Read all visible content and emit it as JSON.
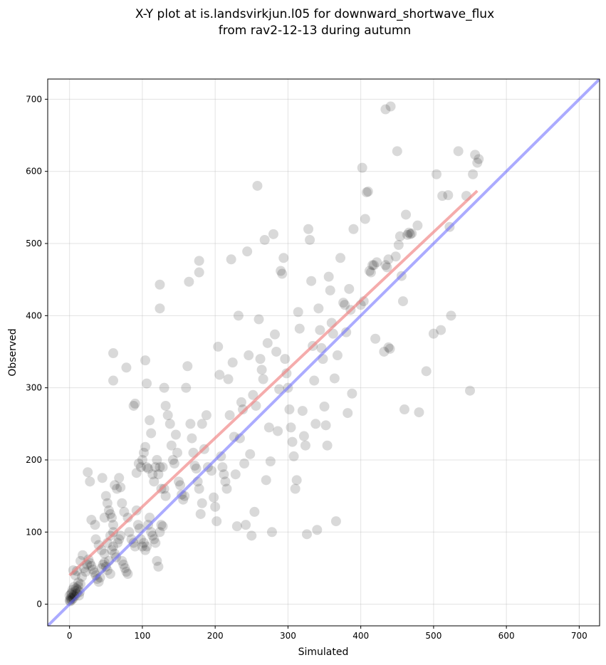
{
  "chart_data": {
    "type": "scatter",
    "title": "X-Y plot at is.landsvirkjun.l05 for downward_shortwave_flux",
    "subtitle": "from rav2-12-13 during autumn",
    "xlabel": "Simulated",
    "ylabel": "Observed",
    "xlim": [
      -30,
      728
    ],
    "ylim": [
      -30,
      728
    ],
    "x_ticks": [
      0,
      100,
      200,
      300,
      400,
      500,
      600,
      700
    ],
    "y_ticks": [
      0,
      100,
      200,
      300,
      400,
      500,
      600,
      700
    ],
    "grid": true,
    "colors": {
      "points": "#000000",
      "fit_line": "#f08080",
      "identity_line": "#6666ff"
    },
    "identity_line": {
      "x": [
        -30,
        728
      ],
      "y": [
        -30,
        728
      ]
    },
    "fit_line": {
      "x": [
        0,
        560
      ],
      "y": [
        40,
        573
      ]
    },
    "points": [
      [
        0,
        5
      ],
      [
        1,
        7
      ],
      [
        2,
        9
      ],
      [
        0,
        12
      ],
      [
        3,
        6
      ],
      [
        4,
        10
      ],
      [
        2,
        14
      ],
      [
        5,
        8
      ],
      [
        6,
        13
      ],
      [
        1,
        4
      ],
      [
        3,
        16
      ],
      [
        7,
        11
      ],
      [
        8,
        18
      ],
      [
        9,
        22
      ],
      [
        10,
        15
      ],
      [
        12,
        25
      ],
      [
        11,
        20
      ],
      [
        14,
        17
      ],
      [
        6,
        24
      ],
      [
        4,
        20
      ],
      [
        13,
        12
      ],
      [
        15,
        28
      ],
      [
        5,
        47
      ],
      [
        8,
        40
      ],
      [
        10,
        46
      ],
      [
        12,
        30
      ],
      [
        17,
        38
      ],
      [
        15,
        60
      ],
      [
        18,
        68
      ],
      [
        20,
        50
      ],
      [
        22,
        45
      ],
      [
        24,
        55
      ],
      [
        26,
        62
      ],
      [
        28,
        57
      ],
      [
        30,
        53
      ],
      [
        32,
        48
      ],
      [
        34,
        44
      ],
      [
        36,
        40
      ],
      [
        38,
        35
      ],
      [
        40,
        31
      ],
      [
        42,
        37
      ],
      [
        44,
        50
      ],
      [
        46,
        55
      ],
      [
        48,
        58
      ],
      [
        50,
        52
      ],
      [
        52,
        47
      ],
      [
        54,
        60
      ],
      [
        56,
        42
      ],
      [
        58,
        75
      ],
      [
        60,
        80
      ],
      [
        62,
        70
      ],
      [
        64,
        65
      ],
      [
        66,
        85
      ],
      [
        68,
        90
      ],
      [
        70,
        95
      ],
      [
        72,
        60
      ],
      [
        74,
        55
      ],
      [
        76,
        50
      ],
      [
        78,
        45
      ],
      [
        80,
        42
      ],
      [
        36,
        90
      ],
      [
        40,
        82
      ],
      [
        44,
        75
      ],
      [
        48,
        70
      ],
      [
        52,
        85
      ],
      [
        56,
        95
      ],
      [
        60,
        100
      ],
      [
        25,
        183
      ],
      [
        28,
        170
      ],
      [
        30,
        117
      ],
      [
        35,
        110
      ],
      [
        45,
        175
      ],
      [
        48,
        120
      ],
      [
        50,
        150
      ],
      [
        52,
        140
      ],
      [
        54,
        130
      ],
      [
        56,
        125
      ],
      [
        58,
        120
      ],
      [
        60,
        110
      ],
      [
        62,
        165
      ],
      [
        65,
        160
      ],
      [
        68,
        175
      ],
      [
        70,
        162
      ],
      [
        72,
        140
      ],
      [
        75,
        128
      ],
      [
        80,
        120
      ],
      [
        82,
        100
      ],
      [
        85,
        90
      ],
      [
        88,
        85
      ],
      [
        90,
        80
      ],
      [
        92,
        130
      ],
      [
        94,
        110
      ],
      [
        96,
        105
      ],
      [
        98,
        90
      ],
      [
        100,
        80
      ],
      [
        102,
        85
      ],
      [
        104,
        75
      ],
      [
        106,
        80
      ],
      [
        108,
        110
      ],
      [
        110,
        120
      ],
      [
        112,
        100
      ],
      [
        114,
        95
      ],
      [
        116,
        90
      ],
      [
        118,
        85
      ],
      [
        120,
        60
      ],
      [
        122,
        52
      ],
      [
        124,
        100
      ],
      [
        126,
        110
      ],
      [
        128,
        190
      ],
      [
        130,
        160
      ],
      [
        132,
        150
      ],
      [
        60,
        348
      ],
      [
        60,
        310
      ],
      [
        78,
        328
      ],
      [
        88,
        275
      ],
      [
        90,
        278
      ],
      [
        104,
        338
      ],
      [
        106,
        306
      ],
      [
        92,
        182
      ],
      [
        95,
        195
      ],
      [
        98,
        190
      ],
      [
        100,
        200
      ],
      [
        102,
        210
      ],
      [
        104,
        218
      ],
      [
        106,
        190
      ],
      [
        108,
        188
      ],
      [
        110,
        255
      ],
      [
        112,
        237
      ],
      [
        114,
        180
      ],
      [
        116,
        170
      ],
      [
        118,
        190
      ],
      [
        120,
        200
      ],
      [
        122,
        180
      ],
      [
        124,
        190
      ],
      [
        126,
        160
      ],
      [
        128,
        108
      ],
      [
        130,
        300
      ],
      [
        132,
        275
      ],
      [
        135,
        262
      ],
      [
        138,
        250
      ],
      [
        140,
        220
      ],
      [
        142,
        200
      ],
      [
        144,
        195
      ],
      [
        146,
        235
      ],
      [
        148,
        210
      ],
      [
        150,
        170
      ],
      [
        152,
        165
      ],
      [
        154,
        152
      ],
      [
        156,
        145
      ],
      [
        158,
        150
      ],
      [
        160,
        300
      ],
      [
        162,
        330
      ],
      [
        164,
        447
      ],
      [
        166,
        250
      ],
      [
        168,
        230
      ],
      [
        170,
        210
      ],
      [
        172,
        192
      ],
      [
        174,
        188
      ],
      [
        176,
        170
      ],
      [
        178,
        160
      ],
      [
        180,
        125
      ],
      [
        182,
        140
      ],
      [
        124,
        443
      ],
      [
        124,
        410
      ],
      [
        178,
        476
      ],
      [
        178,
        460
      ],
      [
        182,
        250
      ],
      [
        185,
        215
      ],
      [
        188,
        262
      ],
      [
        190,
        190
      ],
      [
        195,
        185
      ],
      [
        198,
        148
      ],
      [
        200,
        135
      ],
      [
        202,
        115
      ],
      [
        204,
        357
      ],
      [
        206,
        318
      ],
      [
        208,
        205
      ],
      [
        210,
        190
      ],
      [
        212,
        180
      ],
      [
        214,
        170
      ],
      [
        216,
        160
      ],
      [
        218,
        312
      ],
      [
        220,
        262
      ],
      [
        222,
        478
      ],
      [
        224,
        335
      ],
      [
        226,
        232
      ],
      [
        228,
        180
      ],
      [
        230,
        108
      ],
      [
        232,
        400
      ],
      [
        234,
        230
      ],
      [
        236,
        280
      ],
      [
        238,
        270
      ],
      [
        240,
        195
      ],
      [
        242,
        110
      ],
      [
        244,
        489
      ],
      [
        246,
        345
      ],
      [
        248,
        208
      ],
      [
        250,
        95
      ],
      [
        252,
        290
      ],
      [
        254,
        128
      ],
      [
        256,
        275
      ],
      [
        258,
        580
      ],
      [
        260,
        395
      ],
      [
        262,
        340
      ],
      [
        264,
        325
      ],
      [
        266,
        312
      ],
      [
        268,
        505
      ],
      [
        270,
        172
      ],
      [
        272,
        362
      ],
      [
        274,
        245
      ],
      [
        276,
        198
      ],
      [
        278,
        100
      ],
      [
        280,
        513
      ],
      [
        282,
        374
      ],
      [
        284,
        350
      ],
      [
        286,
        240
      ],
      [
        288,
        298
      ],
      [
        290,
        462
      ],
      [
        292,
        458
      ],
      [
        294,
        480
      ],
      [
        296,
        340
      ],
      [
        298,
        320
      ],
      [
        300,
        300
      ],
      [
        302,
        270
      ],
      [
        304,
        245
      ],
      [
        306,
        225
      ],
      [
        308,
        205
      ],
      [
        310,
        160
      ],
      [
        312,
        172
      ],
      [
        314,
        405
      ],
      [
        316,
        382
      ],
      [
        320,
        268
      ],
      [
        322,
        233
      ],
      [
        324,
        220
      ],
      [
        326,
        97
      ],
      [
        328,
        520
      ],
      [
        330,
        505
      ],
      [
        332,
        448
      ],
      [
        334,
        358
      ],
      [
        336,
        310
      ],
      [
        338,
        250
      ],
      [
        340,
        103
      ],
      [
        342,
        410
      ],
      [
        344,
        380
      ],
      [
        346,
        355
      ],
      [
        348,
        340
      ],
      [
        350,
        274
      ],
      [
        352,
        248
      ],
      [
        354,
        220
      ],
      [
        356,
        454
      ],
      [
        358,
        435
      ],
      [
        360,
        390
      ],
      [
        362,
        375
      ],
      [
        364,
        313
      ],
      [
        366,
        115
      ],
      [
        368,
        345
      ],
      [
        372,
        480
      ],
      [
        376,
        418
      ],
      [
        378,
        415
      ],
      [
        380,
        377
      ],
      [
        382,
        265
      ],
      [
        384,
        437
      ],
      [
        386,
        408
      ],
      [
        388,
        292
      ],
      [
        390,
        520
      ],
      [
        400,
        415
      ],
      [
        402,
        605
      ],
      [
        404,
        420
      ],
      [
        406,
        534
      ],
      [
        408,
        571
      ],
      [
        410,
        572
      ],
      [
        412,
        462
      ],
      [
        414,
        460
      ],
      [
        416,
        470
      ],
      [
        418,
        470
      ],
      [
        420,
        368
      ],
      [
        422,
        474
      ],
      [
        432,
        350
      ],
      [
        434,
        470
      ],
      [
        436,
        467
      ],
      [
        438,
        478
      ],
      [
        438,
        356
      ],
      [
        440,
        354
      ],
      [
        441,
        690
      ],
      [
        434,
        686
      ],
      [
        448,
        482
      ],
      [
        450,
        628
      ],
      [
        452,
        498
      ],
      [
        454,
        510
      ],
      [
        456,
        455
      ],
      [
        458,
        420
      ],
      [
        460,
        270
      ],
      [
        462,
        540
      ],
      [
        464,
        512
      ],
      [
        466,
        515
      ],
      [
        468,
        513
      ],
      [
        470,
        514
      ],
      [
        478,
        525
      ],
      [
        480,
        266
      ],
      [
        490,
        323
      ],
      [
        500,
        375
      ],
      [
        504,
        596
      ],
      [
        510,
        380
      ],
      [
        512,
        566
      ],
      [
        520,
        567
      ],
      [
        522,
        523
      ],
      [
        524,
        400
      ],
      [
        534,
        628
      ],
      [
        545,
        566
      ],
      [
        550,
        296
      ],
      [
        554,
        596
      ],
      [
        557,
        623
      ],
      [
        560,
        612
      ],
      [
        562,
        617
      ]
    ]
  }
}
